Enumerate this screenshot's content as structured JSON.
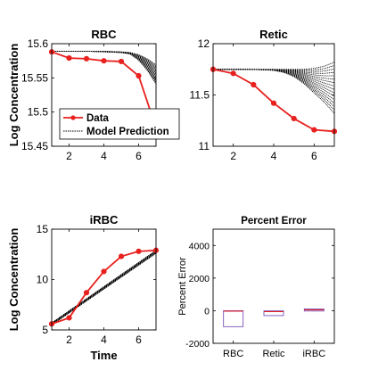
{
  "colors": {
    "data": "#e8201e",
    "model": "#000000",
    "box": "#7b52b8",
    "axis": "#000000"
  },
  "chart_data": [
    {
      "id": "rbc",
      "type": "line",
      "title": "RBC",
      "xlabel": "",
      "ylabel": "Log Concentration",
      "xlim": [
        1,
        7
      ],
      "ylim": [
        15.45,
        15.6
      ],
      "xticks": [
        2,
        4,
        6
      ],
      "yticks": [
        15.45,
        15.5,
        15.55,
        15.6
      ],
      "ytick_labels": [
        "15.45",
        "15.5",
        "15.55",
        "15.6"
      ],
      "legend": {
        "placement": "bottom-left",
        "entries": [
          "Data",
          "Model Prediction"
        ]
      },
      "data": {
        "x": [
          1,
          2,
          3,
          4,
          5,
          6,
          7
        ],
        "y": [
          15.588,
          15.579,
          15.578,
          15.575,
          15.574,
          15.553,
          15.477
        ]
      },
      "model_band": {
        "x": [
          1,
          2,
          3,
          4,
          5,
          5.5,
          6,
          6.5,
          7
        ],
        "lower": [
          15.589,
          15.589,
          15.589,
          15.588,
          15.587,
          15.585,
          15.576,
          15.561,
          15.541
        ],
        "upper": [
          15.589,
          15.589,
          15.589,
          15.589,
          15.588,
          15.587,
          15.584,
          15.578,
          15.569
        ]
      }
    },
    {
      "id": "retic",
      "type": "line",
      "title": "Retic",
      "xlabel": "",
      "ylabel": "",
      "xlim": [
        1,
        7
      ],
      "ylim": [
        11,
        12
      ],
      "xticks": [
        2,
        4,
        6
      ],
      "yticks": [
        11,
        11.5,
        12
      ],
      "ytick_labels": [
        "11",
        "11.5",
        "12"
      ],
      "data": {
        "x": [
          1,
          2,
          3,
          4,
          5,
          6,
          7
        ],
        "y": [
          11.75,
          11.71,
          11.6,
          11.42,
          11.27,
          11.16,
          11.145
        ]
      },
      "model_band": {
        "x": [
          1,
          2,
          3,
          4,
          4.5,
          5,
          5.5,
          6,
          6.5,
          7
        ],
        "lower": [
          11.75,
          11.75,
          11.748,
          11.74,
          11.72,
          11.68,
          11.61,
          11.52,
          11.43,
          11.32
        ],
        "upper": [
          11.75,
          11.75,
          11.75,
          11.75,
          11.75,
          11.75,
          11.75,
          11.76,
          11.78,
          11.82
        ]
      }
    },
    {
      "id": "irbc",
      "type": "line",
      "title": "iRBC",
      "xlabel": "Time",
      "ylabel": "Log Concentration",
      "xlim": [
        1,
        7
      ],
      "ylim": [
        5,
        15
      ],
      "xticks": [
        2,
        4,
        6
      ],
      "yticks": [
        5,
        10,
        15
      ],
      "ytick_labels": [
        "5",
        "10",
        "15"
      ],
      "data": {
        "x": [
          1,
          2,
          3,
          4,
          5,
          6,
          7
        ],
        "y": [
          5.6,
          6.2,
          8.7,
          10.8,
          12.3,
          12.8,
          12.9
        ]
      },
      "model_band": {
        "x": [
          1,
          7
        ],
        "lower": [
          5.5,
          12.6
        ],
        "upper": [
          5.7,
          12.9
        ]
      }
    },
    {
      "id": "percent-error",
      "type": "box",
      "title": "Percent Error",
      "xlabel": "",
      "ylabel": "Percent Error",
      "categories": [
        "RBC",
        "Retic",
        "iRBC"
      ],
      "ylim": [
        -2000,
        5000
      ],
      "yticks": [
        -2000,
        0,
        2000,
        4000
      ],
      "ytick_labels": [
        "-2000",
        "0",
        "2000",
        "4000"
      ],
      "boxes": [
        {
          "q1": -980,
          "median": -30,
          "q3": 0,
          "whisker_low": -980,
          "whisker_high": 0
        },
        {
          "q1": -300,
          "median": -60,
          "q3": -10,
          "whisker_low": -300,
          "whisker_high": -10
        },
        {
          "q1": -20,
          "median": 50,
          "q3": 110,
          "whisker_low": -50,
          "whisker_high": 130
        }
      ]
    }
  ]
}
